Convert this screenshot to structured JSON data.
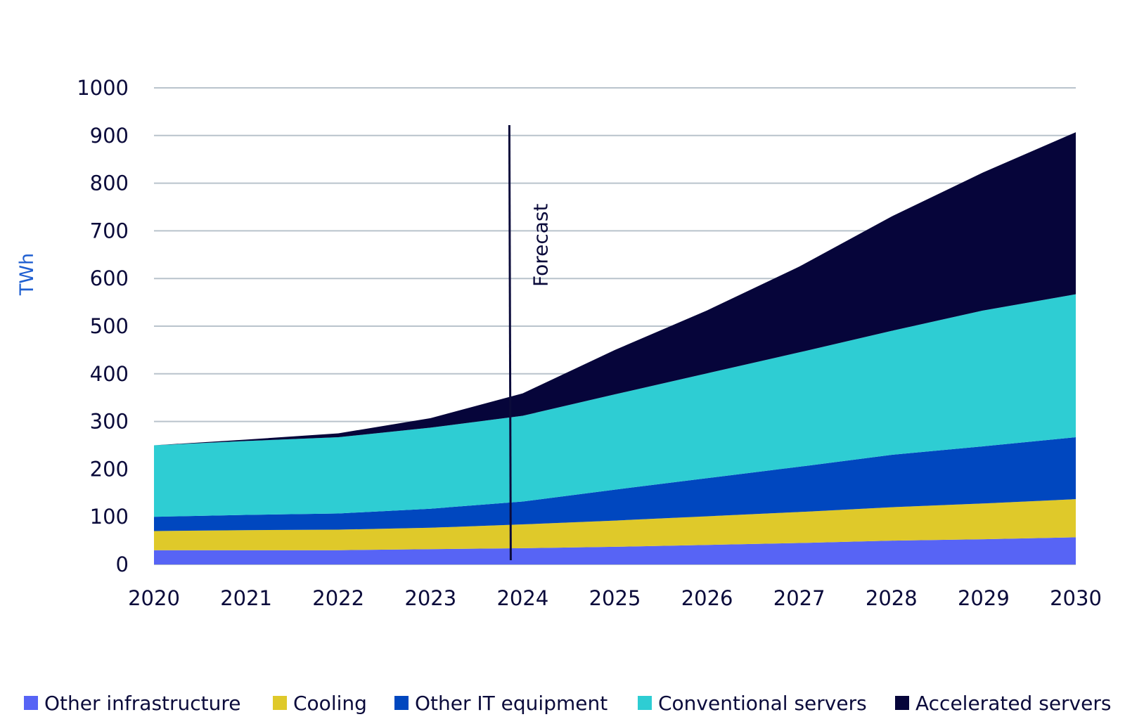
{
  "chart_data": {
    "type": "area",
    "stacked": true,
    "title": "",
    "xlabel": "",
    "ylabel": "TWh",
    "ylim": [
      0,
      1000
    ],
    "yticks": [
      0,
      100,
      200,
      300,
      400,
      500,
      600,
      700,
      800,
      900,
      1000
    ],
    "grid": true,
    "legend_position": "bottom",
    "categories": [
      "2020",
      "2021",
      "2022",
      "2023",
      "2024",
      "2025",
      "2026",
      "2027",
      "2028",
      "2029",
      "2030"
    ],
    "annotation": {
      "text": "Forecast",
      "at": "2024"
    },
    "series": [
      {
        "name": "Other infrastructure",
        "color": "#5764f5",
        "values": [
          30,
          30,
          30,
          32,
          34,
          37,
          41,
          45,
          50,
          53,
          57
        ]
      },
      {
        "name": "Cooling",
        "color": "#dfc92a",
        "values": [
          40,
          42,
          43,
          45,
          50,
          55,
          60,
          65,
          70,
          75,
          80
        ]
      },
      {
        "name": "Other IT equipment",
        "color": "#0047bf",
        "values": [
          30,
          32,
          34,
          40,
          48,
          65,
          80,
          95,
          110,
          120,
          130
        ]
      },
      {
        "name": "Conventional servers",
        "color": "#2ecdd3",
        "values": [
          150,
          155,
          160,
          170,
          180,
          200,
          220,
          240,
          260,
          285,
          300
        ]
      },
      {
        "name": "Accelerated servers",
        "color": "#06053a",
        "values": [
          0,
          3,
          8,
          20,
          47,
          93,
          132,
          180,
          240,
          290,
          340
        ]
      }
    ]
  }
}
